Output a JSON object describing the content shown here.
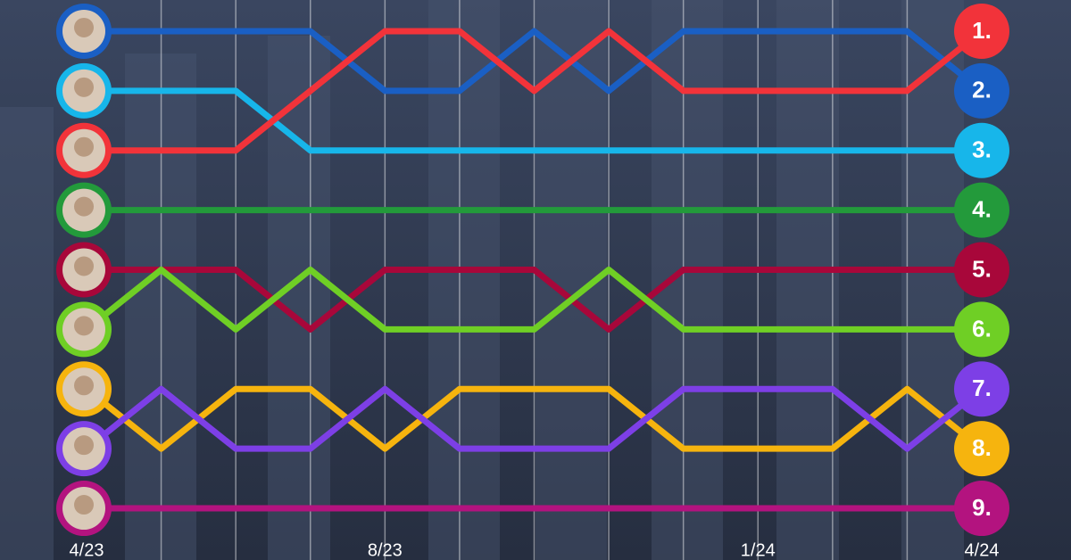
{
  "chart_data": {
    "type": "bump",
    "categories": [
      "4/23",
      null,
      null,
      null,
      "8/23",
      null,
      null,
      null,
      null,
      "1/24",
      null,
      null,
      "4/24"
    ],
    "ylim": [
      9.5,
      0.5
    ],
    "grid": true,
    "series": [
      {
        "color": "#1a5fc4",
        "end_label": "2.",
        "values": [
          1,
          1,
          1,
          1,
          2,
          2,
          1,
          2,
          1,
          1,
          1,
          1,
          2
        ]
      },
      {
        "color": "#17b6ea",
        "end_label": "3.",
        "values": [
          2,
          2,
          2,
          3,
          3,
          3,
          3,
          3,
          3,
          3,
          3,
          3,
          3
        ]
      },
      {
        "color": "#f2333a",
        "end_label": "1.",
        "values": [
          3,
          3,
          3,
          2,
          1,
          1,
          2,
          1,
          2,
          2,
          2,
          2,
          1
        ]
      },
      {
        "color": "#239a3b",
        "end_label": "4.",
        "values": [
          4,
          4,
          4,
          4,
          4,
          4,
          4,
          4,
          4,
          4,
          4,
          4,
          4
        ]
      },
      {
        "color": "#a8073a",
        "end_label": "5.",
        "values": [
          5,
          5,
          5,
          6,
          5,
          5,
          5,
          6,
          5,
          5,
          5,
          5,
          5
        ]
      },
      {
        "color": "#6fcf25",
        "end_label": "6.",
        "values": [
          6,
          5,
          6,
          5,
          6,
          6,
          6,
          5,
          6,
          6,
          6,
          6,
          6
        ]
      },
      {
        "color": "#f6b40e",
        "end_label": "8.",
        "values": [
          7,
          8,
          7,
          7,
          8,
          7,
          7,
          7,
          8,
          8,
          8,
          7,
          8
        ]
      },
      {
        "color": "#7d3fe6",
        "end_label": "7.",
        "values": [
          8,
          7,
          8,
          8,
          7,
          8,
          8,
          8,
          7,
          7,
          7,
          8,
          7
        ]
      },
      {
        "color": "#b3137f",
        "end_label": "9.",
        "values": [
          9,
          9,
          9,
          9,
          9,
          9,
          9,
          9,
          9,
          9,
          9,
          9,
          9
        ]
      }
    ]
  }
}
